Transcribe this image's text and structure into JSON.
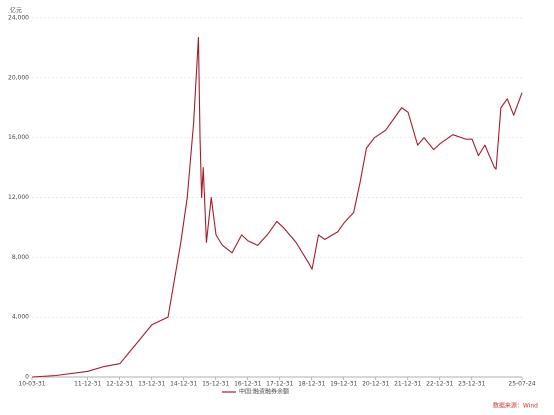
{
  "chart_data": {
    "type": "line",
    "y_unit": "亿元",
    "source": "数据来源：Wind",
    "x": [
      2010.25,
      2011.0,
      2012.0,
      2012.5,
      2013.0,
      2013.5,
      2014.0,
      2014.5,
      2014.9,
      2015.1,
      2015.3,
      2015.45,
      2015.5,
      2015.55,
      2015.6,
      2015.7,
      2015.85,
      2016.0,
      2016.2,
      2016.5,
      2016.8,
      2017.0,
      2017.3,
      2017.6,
      2017.9,
      2018.1,
      2018.5,
      2018.9,
      2019.0,
      2019.2,
      2019.4,
      2019.8,
      2020.0,
      2020.3,
      2020.5,
      2020.7,
      2020.95,
      2021.3,
      2021.8,
      2022.0,
      2022.3,
      2022.5,
      2022.8,
      2023.0,
      2023.4,
      2023.8,
      2024.0,
      2024.2,
      2024.4,
      2024.7,
      2024.75,
      2024.9,
      2025.1,
      2025.3,
      2025.56
    ],
    "series": [
      {
        "name": "中国:融资融券余额",
        "color": "#a51d2d",
        "values": [
          0,
          100,
          380,
          700,
          900,
          2200,
          3500,
          4000,
          9000,
          12000,
          17000,
          22700,
          16000,
          12000,
          14000,
          9000,
          12000,
          9500,
          8800,
          8300,
          9500,
          9100,
          8800,
          9500,
          10400,
          10000,
          9000,
          7600,
          7200,
          9500,
          9200,
          9700,
          10300,
          11000,
          13000,
          15300,
          16000,
          16500,
          18000,
          17700,
          15500,
          16000,
          15200,
          15600,
          16200,
          15900,
          15900,
          14800,
          15500,
          14000,
          13900,
          18000,
          18600,
          17500,
          19000
        ]
      }
    ],
    "xlim": [
      2010.25,
      2025.56
    ],
    "xticks": [
      {
        "value": 2010.25,
        "label": "10-03-31"
      },
      {
        "value": 2011.99,
        "label": "11-12-31"
      },
      {
        "value": 2012.99,
        "label": "12-12-31"
      },
      {
        "value": 2013.99,
        "label": "13-12-31"
      },
      {
        "value": 2014.99,
        "label": "14-12-31"
      },
      {
        "value": 2015.99,
        "label": "15-12-31"
      },
      {
        "value": 2016.99,
        "label": "16-12-31"
      },
      {
        "value": 2017.99,
        "label": "17-12-31"
      },
      {
        "value": 2018.99,
        "label": "18-12-31"
      },
      {
        "value": 2019.99,
        "label": "19-12-31"
      },
      {
        "value": 2020.99,
        "label": "20-12-31"
      },
      {
        "value": 2021.99,
        "label": "21-12-31"
      },
      {
        "value": 2022.99,
        "label": "22-12-31"
      },
      {
        "value": 2023.99,
        "label": "23-12-31"
      },
      {
        "value": 2025.56,
        "label": "25-07-24"
      }
    ],
    "ylim": [
      0,
      24000
    ],
    "yticks": [
      0,
      {
        "value": 4000,
        "label": "4,000"
      },
      {
        "value": 8000,
        "label": "8,000"
      },
      {
        "value": 12000,
        "label": "12,000"
      },
      {
        "value": 16000,
        "label": "16,000"
      },
      {
        "value": 20000,
        "label": "20,000"
      },
      {
        "value": 24000,
        "label": "24,000"
      }
    ],
    "grid": true
  }
}
